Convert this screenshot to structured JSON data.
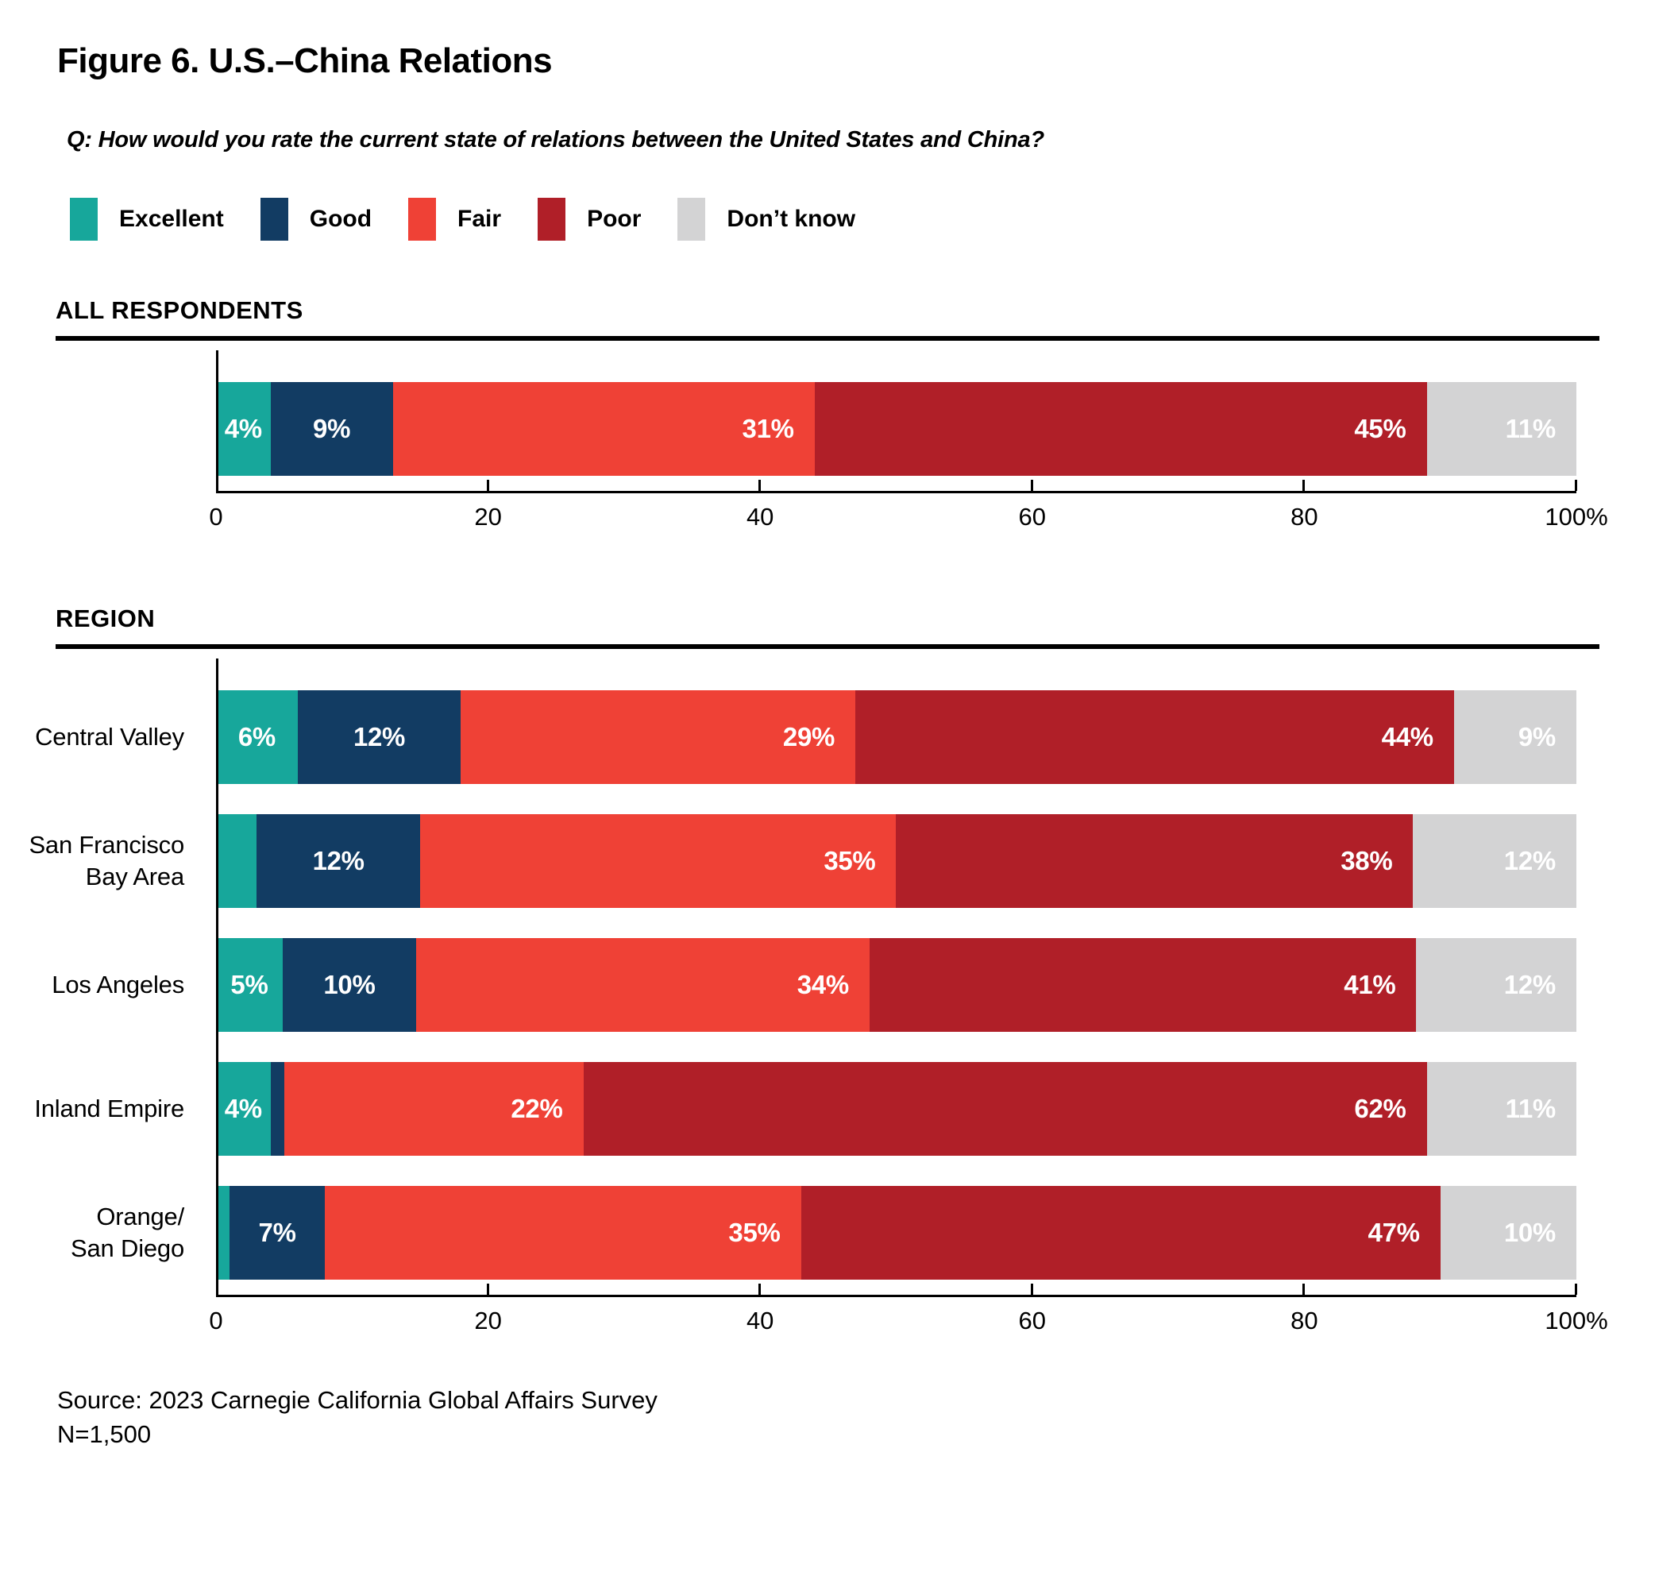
{
  "title": "Figure 6. U.S.–China Relations",
  "question": "Q: How would you rate the current state of relations between the United States and China?",
  "legend": [
    {
      "label": "Excellent",
      "color": "#17A79B"
    },
    {
      "label": "Good",
      "color": "#123C63"
    },
    {
      "label": "Fair",
      "color": "#EF4136"
    },
    {
      "label": "Poor",
      "color": "#B01F28"
    },
    {
      "label": "Don’t know",
      "color": "#D3D3D4"
    }
  ],
  "chart_data": {
    "type": "bar",
    "variant": "stacked-horizontal",
    "unit": "percent",
    "xlim": [
      0,
      100
    ],
    "x_ticks": [
      "0",
      "20",
      "40",
      "60",
      "80",
      "100%"
    ],
    "categories_legend": [
      "Excellent",
      "Good",
      "Fair",
      "Poor",
      "Don't know"
    ],
    "sections": [
      {
        "header": "ALL RESPONDENTS",
        "rows": [
          {
            "label": "",
            "values": [
              4,
              9,
              31,
              45,
              11
            ],
            "display_labels": [
              "4%",
              "9%",
              "31%",
              "45%",
              "11%"
            ]
          }
        ]
      },
      {
        "header": "REGION",
        "rows": [
          {
            "label": "Central Valley",
            "values": [
              6,
              12,
              29,
              44,
              9
            ],
            "display_labels": [
              "6%",
              "12%",
              "29%",
              "44%",
              "9%"
            ]
          },
          {
            "label": "San Francisco\nBay Area",
            "values": [
              3,
              12,
              35,
              38,
              12
            ],
            "display_labels": [
              null,
              "12%",
              "35%",
              "38%",
              "12%"
            ]
          },
          {
            "label": "Los Angeles",
            "values": [
              5,
              10,
              34,
              41,
              12
            ],
            "display_labels": [
              "5%",
              "10%",
              "34%",
              "41%",
              "12%"
            ]
          },
          {
            "label": "Inland Empire",
            "values": [
              4,
              1,
              22,
              62,
              11
            ],
            "display_labels": [
              "4%",
              null,
              "22%",
              "62%",
              "11%"
            ]
          },
          {
            "label": "Orange/\nSan Diego",
            "values": [
              1,
              7,
              35,
              47,
              10
            ],
            "display_labels": [
              null,
              "7%",
              "35%",
              "47%",
              "10%"
            ]
          }
        ]
      }
    ]
  },
  "source": "Source: 2023 Carnegie California Global Affairs Survey",
  "sample_size": "N=1,500"
}
